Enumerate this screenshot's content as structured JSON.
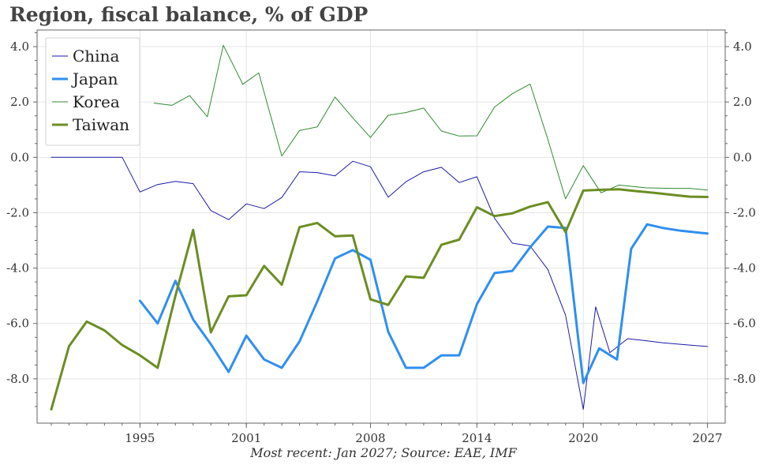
{
  "chart_data": {
    "type": "line",
    "title": "Region, fiscal balance, % of GDP",
    "footer": "Most recent: Jan 2027; Source: EAE, IMF",
    "x_ticks": [
      1995,
      2001,
      2008,
      2014,
      2020,
      2027
    ],
    "y_ticks": [
      "4.0",
      "2.0",
      "0.0",
      "-2.0",
      "-4.0",
      "-6.0",
      "-8.0"
    ],
    "y_tick_values": [
      4,
      2,
      0,
      -2,
      -4,
      -6,
      -8
    ],
    "xlim": [
      1989.2,
      2028.0
    ],
    "ylim": [
      -9.6,
      4.6
    ],
    "grid": true,
    "legend_position": "top-left",
    "series": [
      {
        "name": "China",
        "color": "#1a1aa8",
        "width": 1,
        "points": [
          [
            1990,
            0.0
          ],
          [
            1991,
            0.0
          ],
          [
            1992,
            0.0
          ],
          [
            1993,
            0.0
          ],
          [
            1994,
            0.0
          ],
          [
            1995,
            -1.25
          ],
          [
            1996,
            -0.98
          ],
          [
            1997,
            -0.87
          ],
          [
            1998,
            -0.95
          ],
          [
            1999,
            -1.92
          ],
          [
            2000,
            -2.25
          ],
          [
            2001,
            -1.68
          ],
          [
            2002,
            -1.85
          ],
          [
            2003,
            -1.45
          ],
          [
            2004,
            -0.52
          ],
          [
            2005,
            -0.55
          ],
          [
            2006,
            -0.67
          ],
          [
            2007,
            -0.14
          ],
          [
            2008,
            -0.34
          ],
          [
            2009,
            -1.44
          ],
          [
            2010,
            -0.88
          ],
          [
            2011,
            -0.52
          ],
          [
            2012,
            -0.36
          ],
          [
            2013,
            -0.91
          ],
          [
            2014,
            -0.7
          ],
          [
            2015,
            -2.2
          ],
          [
            2016,
            -3.1
          ],
          [
            2017,
            -3.2
          ],
          [
            2018,
            -4.05
          ],
          [
            2019,
            -5.7
          ],
          [
            2020,
            -9.1
          ],
          [
            2020.7,
            -5.4
          ],
          [
            2021.5,
            -7.05
          ],
          [
            2022.5,
            -6.55
          ],
          [
            2023.5,
            -6.62
          ],
          [
            2024.5,
            -6.7
          ],
          [
            2026,
            -6.78
          ],
          [
            2027,
            -6.83
          ]
        ]
      },
      {
        "name": "Japan",
        "color": "#2f8ff0",
        "width": 3,
        "points": [
          [
            1995,
            -5.18
          ],
          [
            1996,
            -6.0
          ],
          [
            1997,
            -4.46
          ],
          [
            1998,
            -5.86
          ],
          [
            1999,
            -6.75
          ],
          [
            2000,
            -7.75
          ],
          [
            2001,
            -6.44
          ],
          [
            2002,
            -7.3
          ],
          [
            2003,
            -7.6
          ],
          [
            2004,
            -6.65
          ],
          [
            2005,
            -5.2
          ],
          [
            2006,
            -3.65
          ],
          [
            2007,
            -3.35
          ],
          [
            2008,
            -3.7
          ],
          [
            2009,
            -6.3
          ],
          [
            2010,
            -7.6
          ],
          [
            2011,
            -7.6
          ],
          [
            2012,
            -7.15
          ],
          [
            2013,
            -7.15
          ],
          [
            2014,
            -5.3
          ],
          [
            2015,
            -4.18
          ],
          [
            2016,
            -4.1
          ],
          [
            2017,
            -3.25
          ],
          [
            2018,
            -2.5
          ],
          [
            2019,
            -2.55
          ],
          [
            2020,
            -8.15
          ],
          [
            2020.9,
            -6.9
          ],
          [
            2021.9,
            -7.3
          ],
          [
            2022.7,
            -3.3
          ],
          [
            2023.6,
            -2.42
          ],
          [
            2024.5,
            -2.55
          ],
          [
            2025.5,
            -2.65
          ],
          [
            2027,
            -2.75
          ]
        ]
      },
      {
        "name": "Korea",
        "color": "#2e8b2e",
        "width": 1,
        "points": [
          [
            1995.8,
            1.96
          ],
          [
            1996.8,
            1.88
          ],
          [
            1997.8,
            2.23
          ],
          [
            1998.8,
            1.47
          ],
          [
            1999.7,
            4.05
          ],
          [
            2000.8,
            2.64
          ],
          [
            2001.7,
            3.05
          ],
          [
            2003,
            0.05
          ],
          [
            2004,
            0.97
          ],
          [
            2005,
            1.1
          ],
          [
            2006,
            2.18
          ],
          [
            2007,
            1.43
          ],
          [
            2008,
            0.72
          ],
          [
            2009,
            1.52
          ],
          [
            2010,
            1.62
          ],
          [
            2011,
            1.78
          ],
          [
            2012,
            0.95
          ],
          [
            2013,
            0.77
          ],
          [
            2014,
            0.78
          ],
          [
            2015,
            1.82
          ],
          [
            2016,
            2.3
          ],
          [
            2017,
            2.65
          ],
          [
            2018,
            0.65
          ],
          [
            2019,
            -1.5
          ],
          [
            2020,
            -0.3
          ],
          [
            2021,
            -1.28
          ],
          [
            2022,
            -1.0
          ],
          [
            2023.5,
            -1.1
          ],
          [
            2025,
            -1.12
          ],
          [
            2026,
            -1.12
          ],
          [
            2027,
            -1.18
          ]
        ]
      },
      {
        "name": "Taiwan",
        "color": "#6b8e23",
        "width": 3,
        "points": [
          [
            1990,
            -9.1
          ],
          [
            1991,
            -6.82
          ],
          [
            1992,
            -5.93
          ],
          [
            1993,
            -6.25
          ],
          [
            1994,
            -6.78
          ],
          [
            1995,
            -7.15
          ],
          [
            1996,
            -7.6
          ],
          [
            1997,
            -5.0
          ],
          [
            1998,
            -2.62
          ],
          [
            1999,
            -6.32
          ],
          [
            2000,
            -5.02
          ],
          [
            2001,
            -4.98
          ],
          [
            2002,
            -3.92
          ],
          [
            2003,
            -4.6
          ],
          [
            2004,
            -2.52
          ],
          [
            2005,
            -2.37
          ],
          [
            2006,
            -2.85
          ],
          [
            2007,
            -2.82
          ],
          [
            2008,
            -5.13
          ],
          [
            2009,
            -5.33
          ],
          [
            2010,
            -4.3
          ],
          [
            2011,
            -4.35
          ],
          [
            2012,
            -3.16
          ],
          [
            2013,
            -2.97
          ],
          [
            2014,
            -1.8
          ],
          [
            2015,
            -2.12
          ],
          [
            2016,
            -2.02
          ],
          [
            2017,
            -1.78
          ],
          [
            2018,
            -1.62
          ],
          [
            2019,
            -2.7
          ],
          [
            2020,
            -1.2
          ],
          [
            2021,
            -1.17
          ],
          [
            2022,
            -1.15
          ],
          [
            2023,
            -1.22
          ],
          [
            2024,
            -1.28
          ],
          [
            2025,
            -1.35
          ],
          [
            2026,
            -1.42
          ],
          [
            2027,
            -1.43
          ]
        ]
      }
    ]
  }
}
